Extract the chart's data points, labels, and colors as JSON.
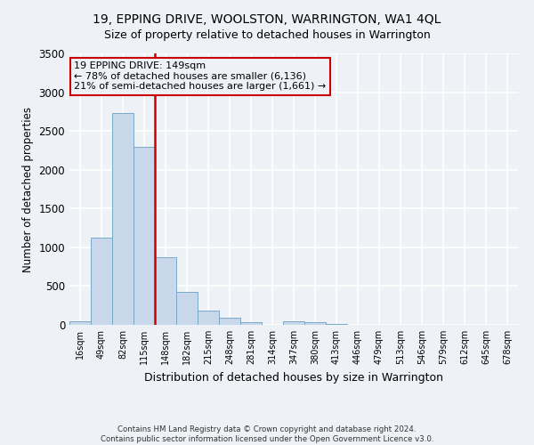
{
  "title": "19, EPPING DRIVE, WOOLSTON, WARRINGTON, WA1 4QL",
  "subtitle": "Size of property relative to detached houses in Warrington",
  "xlabel": "Distribution of detached houses by size in Warrington",
  "ylabel": "Number of detached properties",
  "bin_labels": [
    "16sqm",
    "49sqm",
    "82sqm",
    "115sqm",
    "148sqm",
    "182sqm",
    "215sqm",
    "248sqm",
    "281sqm",
    "314sqm",
    "347sqm",
    "380sqm",
    "413sqm",
    "446sqm",
    "479sqm",
    "513sqm",
    "546sqm",
    "579sqm",
    "612sqm",
    "645sqm",
    "678sqm"
  ],
  "bar_values": [
    50,
    1120,
    2730,
    2300,
    870,
    430,
    185,
    95,
    40,
    0,
    50,
    30,
    10,
    0,
    0,
    0,
    0,
    0,
    0,
    0,
    0
  ],
  "bar_color": "#c8d8ea",
  "bar_edge_color": "#7aaac8",
  "property_line_color": "#cc0000",
  "property_line_index": 3.5,
  "annotation_title": "19 EPPING DRIVE: 149sqm",
  "annotation_line1": "← 78% of detached houses are smaller (6,136)",
  "annotation_line2": "21% of semi-detached houses are larger (1,661) →",
  "annotation_box_edgecolor": "#cc0000",
  "ylim": [
    0,
    3500
  ],
  "yticks": [
    0,
    500,
    1000,
    1500,
    2000,
    2500,
    3000,
    3500
  ],
  "footnote1": "Contains HM Land Registry data © Crown copyright and database right 2024.",
  "footnote2": "Contains public sector information licensed under the Open Government Licence v3.0.",
  "background_color": "#eef2f7",
  "grid_color": "#ffffff"
}
